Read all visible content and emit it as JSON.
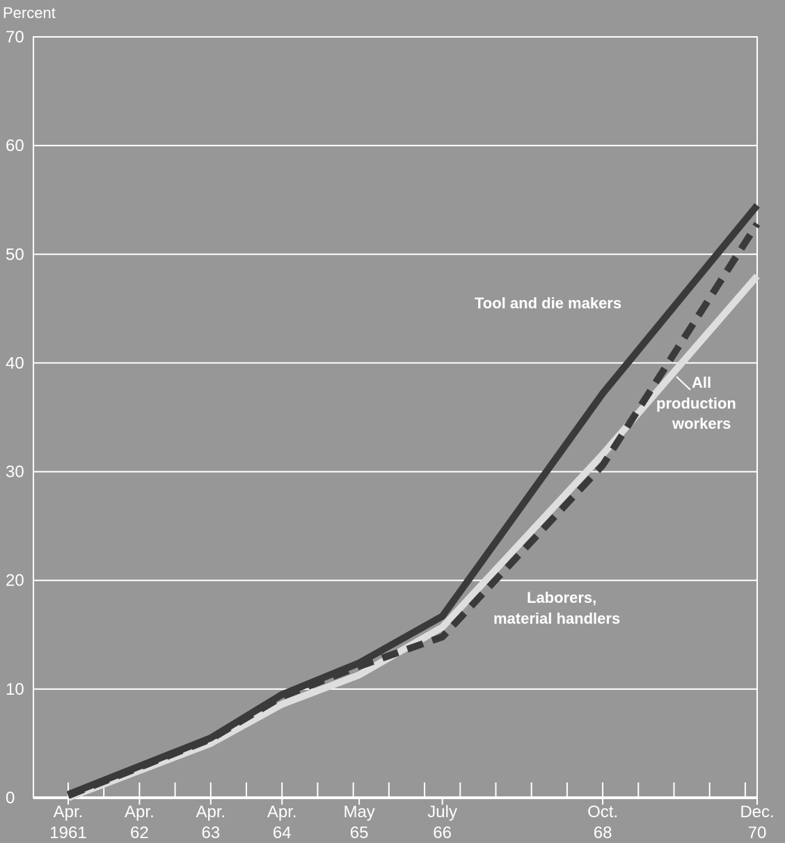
{
  "chart_data": {
    "type": "line",
    "ylabel": "Percent",
    "ylim": [
      0,
      70
    ],
    "yticks": [
      0,
      10,
      20,
      30,
      40,
      50,
      60,
      70
    ],
    "grid": true,
    "x_ticks": [
      {
        "x": 0,
        "line1": "Apr.",
        "line2": "1961"
      },
      {
        "x": 1,
        "line1": "Apr.",
        "line2": "62"
      },
      {
        "x": 2,
        "line1": "Apr.",
        "line2": "63"
      },
      {
        "x": 3,
        "line1": "Apr.",
        "line2": "64"
      },
      {
        "x": 4.083,
        "line1": "May",
        "line2": "65"
      },
      {
        "x": 5.25,
        "line1": "July",
        "line2": "66"
      },
      {
        "x": 7.5,
        "line1": "Oct.",
        "line2": "68"
      },
      {
        "x": 9.667,
        "line1": "Dec.",
        "line2": "70"
      }
    ],
    "series": [
      {
        "name": "Tool and die makers",
        "color": "#3a3a3a",
        "style": "solid",
        "points": [
          [
            0,
            0.3
          ],
          [
            1,
            2.9
          ],
          [
            2,
            5.5
          ],
          [
            3,
            9.5
          ],
          [
            4.083,
            12.4
          ],
          [
            5.25,
            16.7
          ],
          [
            7.5,
            37.2
          ],
          [
            9.667,
            54.5
          ]
        ]
      },
      {
        "name": "All production workers",
        "color": "#3a3a3a",
        "style": "dashed",
        "points": [
          [
            0,
            0.2
          ],
          [
            1,
            2.8
          ],
          [
            2,
            5.4
          ],
          [
            3,
            9.3
          ],
          [
            4.083,
            12.1
          ],
          [
            5.25,
            14.8
          ],
          [
            7.5,
            30.6
          ],
          [
            9.667,
            52.8
          ]
        ]
      },
      {
        "name": "Laborers, material handlers",
        "color": "#dedede",
        "style": "solid",
        "points": [
          [
            0,
            0.0
          ],
          [
            1,
            2.5
          ],
          [
            2,
            5.0
          ],
          [
            3,
            8.6
          ],
          [
            4.083,
            11.3
          ],
          [
            5.25,
            15.7
          ],
          [
            7.5,
            31.6
          ],
          [
            9.667,
            48.0
          ]
        ]
      }
    ],
    "annotations": {
      "tool_die": "Tool and die makers",
      "all_line1": "All",
      "all_line2": "production",
      "all_line3": "workers",
      "laborers_line1": "Laborers,",
      "laborers_line2": "material handlers"
    }
  }
}
